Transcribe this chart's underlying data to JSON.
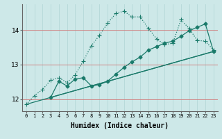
{
  "xlabel": "Humidex (Indice chaleur)",
  "bg_color": "#cde8e8",
  "grid_color_h": "#d08080",
  "grid_color_v": "#b0d4d4",
  "line_color": "#1a7a6a",
  "xlim": [
    -0.5,
    23.5
  ],
  "ylim": [
    11.65,
    14.75
  ],
  "xticks": [
    0,
    1,
    2,
    3,
    4,
    5,
    6,
    7,
    8,
    9,
    10,
    11,
    12,
    13,
    14,
    15,
    16,
    17,
    18,
    19,
    20,
    21,
    22,
    23
  ],
  "yticks": [
    12,
    13,
    14
  ],
  "line1_x": [
    0,
    1,
    2,
    3,
    4,
    5,
    6,
    7,
    8,
    9,
    10,
    11,
    12,
    13,
    14,
    15,
    16,
    17,
    18,
    19,
    20,
    21,
    22,
    23
  ],
  "line1_y": [
    11.85,
    12.1,
    12.28,
    12.55,
    12.62,
    12.48,
    12.7,
    13.1,
    13.55,
    13.85,
    14.2,
    14.48,
    14.55,
    14.38,
    14.38,
    14.05,
    13.75,
    13.58,
    13.62,
    14.3,
    14.05,
    13.7,
    13.68,
    13.42
  ],
  "line2_x": [
    3,
    4,
    5,
    6,
    7,
    8,
    9,
    10,
    11,
    12,
    13,
    14,
    15,
    16,
    17,
    18,
    19,
    20,
    21,
    22,
    23
  ],
  "line2_y": [
    12.05,
    12.52,
    12.38,
    12.58,
    12.62,
    12.38,
    12.42,
    12.52,
    12.72,
    12.92,
    13.08,
    13.22,
    13.42,
    13.52,
    13.62,
    13.68,
    13.82,
    13.98,
    14.08,
    14.18,
    13.38
  ],
  "line3_x": [
    0,
    23
  ],
  "line3_y": [
    11.85,
    13.38
  ],
  "line4_x": [
    3,
    23
  ],
  "line4_y": [
    12.05,
    13.38
  ]
}
